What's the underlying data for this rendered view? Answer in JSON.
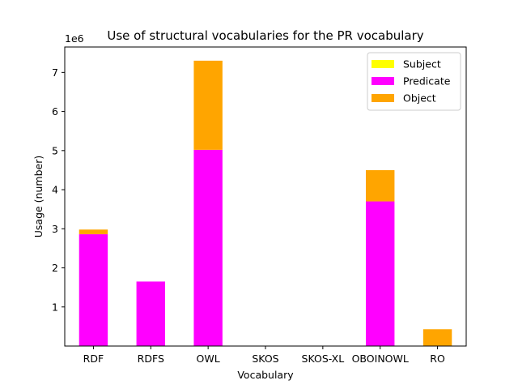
{
  "chart_data": {
    "type": "bar",
    "stacked": true,
    "title": "Use of structural vocabularies for the PR vocabulary",
    "xlabel": "Vocabulary",
    "ylabel": "Usage (number)",
    "y_scale_label": "1e6",
    "categories": [
      "RDF",
      "RDFS",
      "OWL",
      "SKOS",
      "SKOS-XL",
      "OBOINOWL",
      "RO"
    ],
    "series": [
      {
        "name": "Subject",
        "color": "#ffff00",
        "values": [
          0,
          0,
          0,
          0,
          0,
          0,
          0
        ]
      },
      {
        "name": "Predicate",
        "color": "#ff00ff",
        "values": [
          2860000,
          1650000,
          5020000,
          0,
          0,
          3700000,
          0
        ]
      },
      {
        "name": "Object",
        "color": "#ffa500",
        "values": [
          120000,
          0,
          2280000,
          0,
          0,
          800000,
          430000
        ]
      }
    ],
    "ylim": [
      0,
      7650000
    ],
    "yticks": [
      1000000,
      2000000,
      3000000,
      4000000,
      5000000,
      6000000,
      7000000
    ],
    "ytick_labels": [
      "1",
      "2",
      "3",
      "4",
      "5",
      "6",
      "7"
    ],
    "grid": false,
    "legend_position": "top-right"
  }
}
